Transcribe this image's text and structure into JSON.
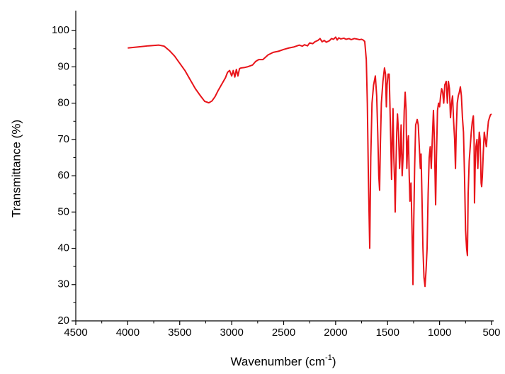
{
  "chart_data": {
    "type": "line",
    "x_label": {
      "text": "Wavenumber (cm",
      "superscript": "-1",
      "suffix": ")"
    },
    "y_label": "Transmittance (%)",
    "color": "#e8141a",
    "x": [
      4000,
      3900,
      3800,
      3700,
      3650,
      3600,
      3550,
      3500,
      3450,
      3400,
      3350,
      3300,
      3260,
      3220,
      3190,
      3160,
      3130,
      3100,
      3080,
      3060,
      3040,
      3020,
      3000,
      2985,
      2970,
      2955,
      2940,
      2925,
      2910,
      2880,
      2850,
      2800,
      2770,
      2740,
      2700,
      2650,
      2600,
      2550,
      2500,
      2450,
      2400,
      2350,
      2320,
      2300,
      2270,
      2250,
      2220,
      2200,
      2170,
      2150,
      2130,
      2110,
      2090,
      2060,
      2040,
      2020,
      2000,
      1985,
      1970,
      1950,
      1920,
      1900,
      1870,
      1850,
      1820,
      1800,
      1770,
      1750,
      1735,
      1720,
      1705,
      1695,
      1685,
      1672,
      1662,
      1650,
      1635,
      1618,
      1605,
      1595,
      1585,
      1577,
      1570,
      1560,
      1545,
      1530,
      1520,
      1512,
      1505,
      1495,
      1485,
      1478,
      1470,
      1462,
      1455,
      1448,
      1440,
      1432,
      1427,
      1420,
      1412,
      1405,
      1395,
      1385,
      1378,
      1370,
      1360,
      1350,
      1340,
      1331,
      1322,
      1315,
      1308,
      1300,
      1292,
      1285,
      1275,
      1265,
      1256,
      1248,
      1240,
      1230,
      1215,
      1205,
      1195,
      1185,
      1178,
      1170,
      1160,
      1150,
      1140,
      1130,
      1120,
      1110,
      1100,
      1090,
      1080,
      1070,
      1059,
      1050,
      1038,
      1030,
      1020,
      1010,
      1000,
      990,
      980,
      970,
      960,
      950,
      936,
      925,
      915,
      905,
      895,
      885,
      875,
      865,
      855,
      847,
      840,
      830,
      820,
      810,
      800,
      790,
      780,
      770,
      760,
      750,
      740,
      732,
      725,
      715,
      705,
      695,
      685,
      675,
      668,
      664,
      658,
      650,
      640,
      632,
      625,
      618,
      610,
      600,
      595,
      588,
      580,
      570,
      560,
      550,
      540,
      530,
      520,
      510,
      500
    ],
    "values": [
      95.2,
      95.5,
      95.8,
      96,
      95.7,
      94.5,
      93,
      91,
      89,
      86.5,
      84,
      82,
      80.5,
      80.1,
      80.6,
      81.8,
      83.5,
      85,
      86,
      87,
      88.5,
      89,
      87.5,
      89,
      87.2,
      89.3,
      87.5,
      89.5,
      89.7,
      89.8,
      90,
      90.5,
      91.5,
      92,
      92,
      93.3,
      94,
      94.3,
      94.8,
      95.2,
      95.5,
      96,
      95.7,
      96.1,
      95.8,
      96.6,
      96.4,
      96.9,
      97.3,
      97.8,
      96.9,
      97.3,
      96.8,
      97.2,
      97.8,
      97.6,
      98.2,
      97.4,
      98,
      97.7,
      97.9,
      97.6,
      97.8,
      97.5,
      97.8,
      97.7,
      97.5,
      97.6,
      97.4,
      97,
      92,
      80,
      60,
      40,
      65,
      80,
      85,
      87.5,
      82,
      72,
      60,
      56,
      68,
      80,
      86,
      89.7,
      88,
      79,
      85,
      88,
      88,
      80,
      70,
      59,
      70,
      78.5,
      65,
      58,
      50,
      62,
      72,
      77,
      72,
      62,
      66,
      74,
      60,
      66,
      78,
      83,
      78,
      62,
      68,
      71,
      60,
      53,
      58,
      45,
      30,
      48,
      62,
      74,
      75.5,
      74,
      68,
      62,
      66,
      55,
      40,
      32,
      29.5,
      34,
      40,
      55,
      65,
      68,
      62,
      70,
      78,
      70,
      52,
      65,
      78,
      80,
      79,
      82,
      84,
      83,
      80,
      85,
      86,
      80,
      86,
      84,
      76,
      80,
      82,
      75,
      70,
      62,
      72,
      80,
      82,
      83,
      84.5,
      82,
      76,
      72,
      60,
      45,
      40,
      38,
      55,
      64,
      68,
      72,
      75,
      76.5,
      70,
      52.5,
      62,
      68,
      70,
      62,
      68,
      72,
      70,
      58,
      57,
      60,
      66,
      72,
      70,
      68,
      72,
      75,
      76,
      76.8,
      77
    ],
    "xlim": [
      4500,
      500
    ],
    "xticks": [
      4500,
      4000,
      3500,
      3000,
      2500,
      2000,
      1500,
      1000,
      500
    ],
    "xminorticks": [
      4250,
      3750,
      3250,
      2750,
      2250,
      1750,
      1250,
      750
    ],
    "ylim": [
      20,
      105.5
    ],
    "yticks": [
      20,
      30,
      40,
      50,
      60,
      70,
      80,
      90,
      100
    ],
    "yminorticks": [
      25,
      35,
      45,
      55,
      65,
      75,
      85,
      95
    ],
    "grid": false
  }
}
